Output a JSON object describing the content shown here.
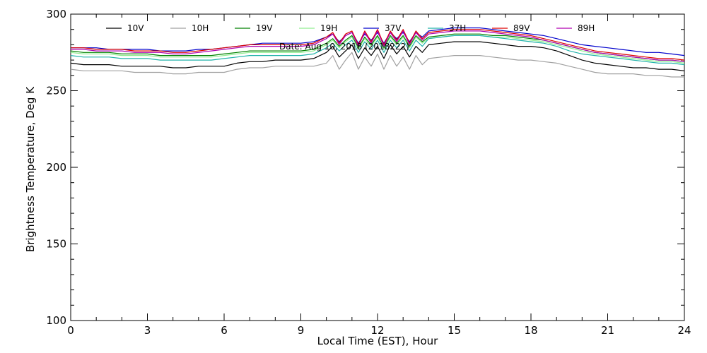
{
  "chart_data": {
    "type": "line",
    "xlabel": "Local Time (EST), Hour",
    "ylabel": "Brightness Temperature, Deg K",
    "annotation": "Date: Aug 10, 2018 (2018222)",
    "xlim": [
      0,
      24
    ],
    "ylim": [
      100,
      300
    ],
    "xticks": [
      0,
      3,
      6,
      9,
      12,
      15,
      18,
      21,
      24
    ],
    "yticks": [
      100,
      150,
      200,
      250,
      300
    ],
    "grid": false,
    "legend_position": "top",
    "x": [
      0,
      0.5,
      1,
      1.5,
      2,
      2.5,
      3,
      3.5,
      4,
      4.5,
      5,
      5.5,
      6,
      6.5,
      7,
      7.5,
      8,
      8.5,
      9,
      9.5,
      10,
      10.25,
      10.5,
      10.75,
      11,
      11.25,
      11.5,
      11.75,
      12,
      12.25,
      12.5,
      12.75,
      13,
      13.25,
      13.5,
      13.75,
      14,
      14.5,
      15,
      15.5,
      16,
      16.5,
      17,
      17.5,
      18,
      18.5,
      19,
      19.5,
      20,
      20.5,
      21,
      21.5,
      22,
      22.5,
      23,
      23.5,
      24
    ],
    "series": [
      {
        "name": "10V",
        "color": "#000000",
        "values": [
          268,
          267,
          267,
          267,
          266,
          266,
          266,
          266,
          265,
          265,
          266,
          266,
          266,
          268,
          269,
          269,
          270,
          270,
          270,
          271,
          275,
          279,
          272,
          276,
          280,
          271,
          278,
          273,
          279,
          271,
          280,
          274,
          279,
          272,
          279,
          275,
          280,
          281,
          282,
          282,
          282,
          281,
          280,
          279,
          279,
          278,
          276,
          273,
          270,
          268,
          267,
          266,
          265,
          265,
          264,
          264,
          263
        ]
      },
      {
        "name": "10H",
        "color": "#a0a0a0",
        "values": [
          264,
          263,
          263,
          263,
          263,
          262,
          262,
          262,
          261,
          261,
          262,
          262,
          262,
          264,
          265,
          265,
          266,
          266,
          266,
          266,
          268,
          273,
          264,
          270,
          275,
          264,
          272,
          266,
          274,
          264,
          273,
          266,
          272,
          264,
          273,
          267,
          271,
          272,
          273,
          273,
          273,
          272,
          271,
          270,
          270,
          269,
          268,
          266,
          264,
          262,
          261,
          261,
          261,
          260,
          260,
          259,
          259
        ]
      },
      {
        "name": "19V",
        "color": "#008000",
        "values": [
          276,
          275,
          275,
          275,
          274,
          274,
          274,
          273,
          273,
          273,
          273,
          273,
          274,
          275,
          276,
          276,
          276,
          276,
          276,
          277,
          281,
          284,
          279,
          283,
          286,
          278,
          285,
          280,
          286,
          278,
          286,
          281,
          286,
          279,
          286,
          282,
          285,
          286,
          287,
          287,
          287,
          286,
          286,
          285,
          284,
          283,
          281,
          279,
          277,
          275,
          274,
          273,
          272,
          271,
          270,
          270,
          269
        ]
      },
      {
        "name": "19H",
        "color": "#90ee90",
        "values": [
          275,
          274,
          274,
          274,
          273,
          273,
          273,
          272,
          272,
          272,
          272,
          272,
          273,
          274,
          275,
          275,
          275,
          275,
          275,
          276,
          280,
          283,
          278,
          282,
          285,
          277,
          284,
          279,
          285,
          277,
          285,
          280,
          285,
          278,
          285,
          281,
          284,
          285,
          286,
          286,
          286,
          285,
          285,
          284,
          283,
          282,
          280,
          278,
          276,
          274,
          273,
          272,
          271,
          270,
          269,
          269,
          268
        ]
      },
      {
        "name": "37V",
        "color": "#0000cc",
        "values": [
          278,
          278,
          278,
          277,
          277,
          277,
          277,
          276,
          276,
          276,
          277,
          277,
          278,
          279,
          280,
          281,
          281,
          281,
          281,
          282,
          285,
          287,
          282,
          286,
          288,
          281,
          287,
          283,
          288,
          281,
          288,
          284,
          288,
          282,
          288,
          285,
          289,
          290,
          291,
          291,
          291,
          290,
          289,
          288,
          287,
          286,
          284,
          282,
          280,
          279,
          278,
          277,
          276,
          275,
          275,
          274,
          273
        ]
      },
      {
        "name": "37H",
        "color": "#20b2aa",
        "values": [
          273,
          272,
          272,
          272,
          271,
          271,
          271,
          270,
          270,
          270,
          270,
          270,
          271,
          272,
          273,
          273,
          273,
          273,
          273,
          274,
          278,
          281,
          276,
          280,
          283,
          275,
          282,
          277,
          283,
          275,
          283,
          278,
          283,
          276,
          283,
          279,
          284,
          285,
          286,
          286,
          286,
          285,
          284,
          283,
          282,
          281,
          279,
          276,
          274,
          273,
          272,
          271,
          270,
          269,
          268,
          268,
          267
        ]
      },
      {
        "name": "89V",
        "color": "#dd0000",
        "values": [
          278,
          278,
          277,
          277,
          277,
          276,
          276,
          276,
          275,
          275,
          276,
          277,
          278,
          279,
          280,
          280,
          280,
          280,
          280,
          281,
          285,
          288,
          281,
          287,
          289,
          280,
          289,
          282,
          290,
          280,
          289,
          283,
          290,
          281,
          289,
          284,
          288,
          289,
          290,
          290,
          290,
          289,
          288,
          287,
          286,
          284,
          282,
          280,
          278,
          276,
          275,
          274,
          273,
          272,
          271,
          271,
          270
        ]
      },
      {
        "name": "89H",
        "color": "#b000b0",
        "values": [
          277,
          277,
          276,
          276,
          276,
          275,
          275,
          275,
          274,
          274,
          275,
          276,
          277,
          278,
          279,
          279,
          279,
          279,
          279,
          280,
          284,
          287,
          280,
          286,
          288,
          279,
          288,
          281,
          289,
          279,
          288,
          282,
          289,
          280,
          288,
          283,
          287,
          288,
          289,
          289,
          289,
          288,
          287,
          286,
          285,
          283,
          281,
          279,
          277,
          275,
          274,
          273,
          272,
          271,
          270,
          270,
          269
        ]
      }
    ]
  }
}
